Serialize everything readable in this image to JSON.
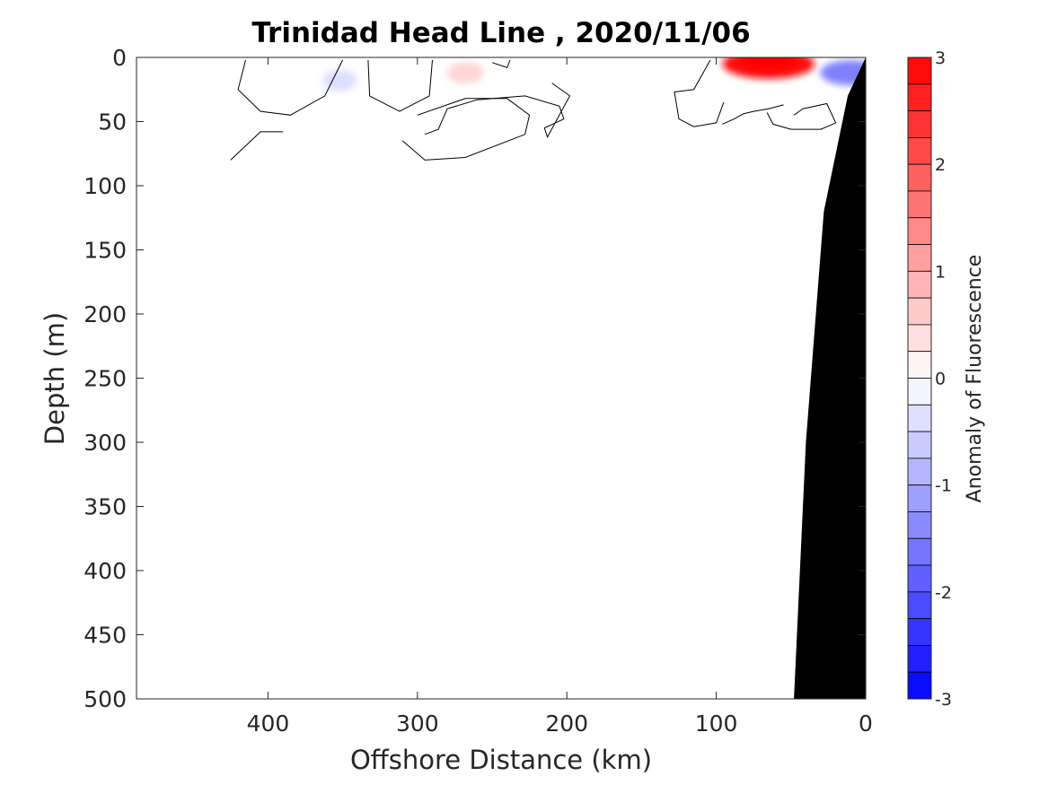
{
  "chart_data": {
    "type": "heatmap",
    "title": "Trinidad Head Line , 2020/11/06",
    "xlabel": "Offshore Distance (km)",
    "ylabel": "Depth (m)",
    "xlim": [
      488,
      0
    ],
    "ylim": [
      0,
      500
    ],
    "x_ticks": [
      "400",
      "300",
      "200",
      "100",
      "0"
    ],
    "x_tick_values": [
      400,
      300,
      200,
      100,
      0
    ],
    "y_ticks": [
      "0",
      "50",
      "100",
      "150",
      "200",
      "250",
      "300",
      "350",
      "400",
      "450",
      "500"
    ],
    "y_tick_values": [
      0,
      50,
      100,
      150,
      200,
      250,
      300,
      350,
      400,
      450,
      500
    ],
    "colorbar": {
      "label": "Anomaly of Fluorescence",
      "range": [
        -3,
        3
      ],
      "levels": 24,
      "ticks": [
        "3",
        "2",
        "1",
        "0",
        "-1",
        "-2",
        "-3"
      ],
      "tick_values": [
        3,
        2,
        1,
        0,
        -1,
        -2,
        -3
      ],
      "colors": {
        "negative": "#0000ff",
        "neutral": "#ffffff",
        "positive": "#ff0000"
      }
    },
    "anomaly_patches": [
      {
        "x": 352,
        "y": 18,
        "value": -0.4
      },
      {
        "x": 268,
        "y": 12,
        "value": 0.5
      },
      {
        "x": 65,
        "y": 5,
        "value": 2.8
      },
      {
        "x": 10,
        "y": 12,
        "value": -1.5
      }
    ],
    "zero_contours": [
      [
        [
          350,
          2
        ],
        [
          362,
          30
        ],
        [
          385,
          45
        ],
        [
          405,
          42
        ],
        [
          420,
          25
        ],
        [
          415,
          2
        ]
      ],
      [
        [
          290,
          2
        ],
        [
          292,
          30
        ],
        [
          312,
          42
        ],
        [
          332,
          30
        ],
        [
          333,
          2
        ]
      ],
      [
        [
          310,
          65
        ],
        [
          295,
          80
        ],
        [
          268,
          78
        ],
        [
          228,
          60
        ],
        [
          225,
          45
        ],
        [
          240,
          32
        ],
        [
          268,
          32
        ],
        [
          300,
          45
        ]
      ],
      [
        [
          238,
          2
        ],
        [
          240,
          8
        ],
        [
          250,
          4
        ]
      ],
      [
        [
          210,
          20
        ],
        [
          198,
          30
        ],
        [
          213,
          62
        ],
        [
          215,
          55
        ],
        [
          202,
          48
        ],
        [
          205,
          38
        ],
        [
          228,
          30
        ],
        [
          260,
          33
        ],
        [
          280,
          40
        ],
        [
          286,
          56
        ],
        [
          295,
          60
        ]
      ],
      [
        [
          425,
          80
        ],
        [
          405,
          58
        ],
        [
          390,
          58
        ]
      ],
      [
        [
          104,
          2
        ],
        [
          115,
          25
        ],
        [
          128,
          27
        ],
        [
          125,
          48
        ],
        [
          115,
          54
        ],
        [
          100,
          51
        ],
        [
          95,
          35
        ]
      ],
      [
        [
          55,
          37
        ],
        [
          65,
          40
        ],
        [
          75,
          42
        ],
        [
          82,
          44
        ],
        [
          88,
          48
        ],
        [
          96,
          52
        ]
      ],
      [
        [
          66,
          43
        ],
        [
          62,
          52
        ],
        [
          50,
          56
        ],
        [
          30,
          56
        ],
        [
          20,
          51
        ],
        [
          26,
          36
        ],
        [
          42,
          40
        ],
        [
          48,
          45
        ]
      ]
    ],
    "bathymetry_color": "#000000",
    "bathymetry": [
      [
        0,
        0
      ],
      [
        12,
        30
      ],
      [
        28,
        120
      ],
      [
        40,
        300
      ],
      [
        48,
        500
      ]
    ]
  }
}
